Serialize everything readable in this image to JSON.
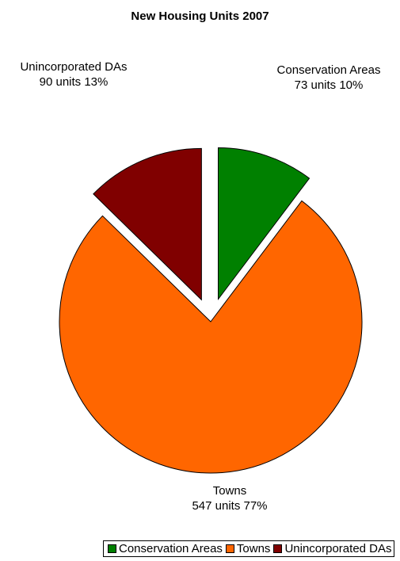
{
  "chart_data": {
    "type": "pie",
    "title": "New Housing Units 2007",
    "legend_position": "bottom",
    "slices": [
      {
        "name": "Conservation Areas",
        "value": 73,
        "percent": 10,
        "value_label": "73 units 10%",
        "color": "#008000",
        "exploded": true
      },
      {
        "name": "Towns",
        "value": 547,
        "percent": 77,
        "value_label": "547 units 77%",
        "color": "#ff6600",
        "exploded": false
      },
      {
        "name": "Unincorporated DAs",
        "value": 90,
        "percent": 13,
        "value_label": "90 units 13%",
        "color": "#800000",
        "exploded": true
      }
    ]
  }
}
